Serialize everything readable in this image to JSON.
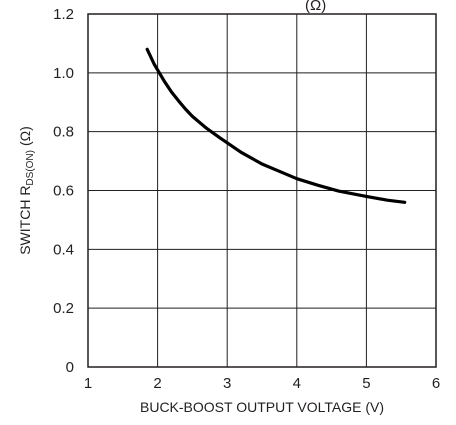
{
  "chart_data": {
    "type": "line",
    "title": "",
    "top_annotation": "(Ω)",
    "xlabel": "BUCK-BOOST OUTPUT VOLTAGE (V)",
    "ylabel_main": "SWITCH R",
    "ylabel_subscript": "DS(ON)",
    "ylabel_unit": "(Ω)",
    "xlim": [
      1,
      6
    ],
    "ylim": [
      0,
      1.2
    ],
    "x_ticks": [
      "1",
      "2",
      "3",
      "4",
      "5",
      "6"
    ],
    "y_ticks": [
      "0",
      "0.2",
      "0.4",
      "0.6",
      "0.8",
      "1.0",
      "1.2"
    ],
    "grid": true,
    "legend": "none",
    "series": [
      {
        "color": "#000000",
        "points": [
          [
            1.85,
            1.08
          ],
          [
            1.95,
            1.03
          ],
          [
            2.0,
            1.01
          ],
          [
            2.1,
            0.97
          ],
          [
            2.2,
            0.935
          ],
          [
            2.3,
            0.905
          ],
          [
            2.4,
            0.877
          ],
          [
            2.5,
            0.852
          ],
          [
            2.7,
            0.812
          ],
          [
            2.9,
            0.778
          ],
          [
            3.0,
            0.762
          ],
          [
            3.2,
            0.73
          ],
          [
            3.5,
            0.69
          ],
          [
            3.8,
            0.66
          ],
          [
            4.0,
            0.64
          ],
          [
            4.3,
            0.618
          ],
          [
            4.6,
            0.598
          ],
          [
            5.0,
            0.58
          ],
          [
            5.3,
            0.567
          ],
          [
            5.55,
            0.56
          ]
        ]
      }
    ]
  }
}
